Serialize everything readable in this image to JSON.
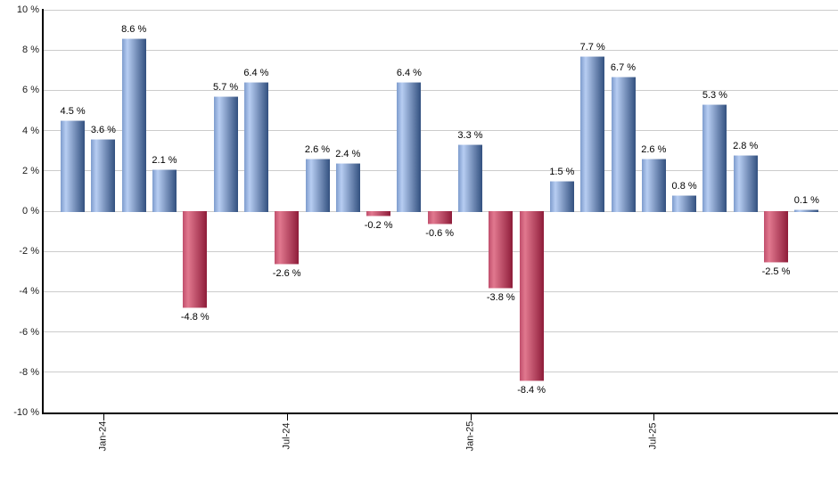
{
  "chart_data": {
    "type": "bar",
    "title": "",
    "xlabel": "",
    "ylabel": "",
    "unit": "%",
    "ylim": [
      -10,
      10
    ],
    "grid": true,
    "legend": false,
    "values": [
      4.5,
      3.6,
      8.6,
      2.1,
      -4.8,
      5.7,
      6.4,
      -2.6,
      2.6,
      2.4,
      -0.2,
      6.4,
      -0.6,
      3.3,
      -3.8,
      -8.4,
      1.5,
      7.7,
      6.7,
      2.6,
      0.8,
      5.3,
      2.8,
      -2.5,
      0.1
    ],
    "bar_labels": [
      "4.5 %",
      "3.6 %",
      "8.6 %",
      "2.1 %",
      "-4.8 %",
      "5.7 %",
      "6.4 %",
      "-2.6 %",
      "2.6 %",
      "2.4 %",
      "-0.2 %",
      "6.4 %",
      "-0.6 %",
      "3.3 %",
      "-3.8 %",
      "-8.4 %",
      "1.5 %",
      "7.7 %",
      "6.7 %",
      "2.6 %",
      "0.8 %",
      "5.3 %",
      "2.8 %",
      "-2.5 %",
      "0.1 %"
    ],
    "x_tick_labels": [
      "Jan-24",
      "Jul-24",
      "Jan-25",
      "Jul-25"
    ],
    "x_tick_bar_index": [
      1,
      7,
      13,
      19
    ],
    "y_ticks": [
      10,
      8,
      6,
      4,
      2,
      0,
      -2,
      -4,
      -6,
      -8,
      -10
    ],
    "y_tick_labels": [
      "10 %",
      "8 %",
      "6 %",
      "4 %",
      "2 %",
      "0 %",
      "-2 %",
      "-4 %",
      "-6 %",
      "-8 %",
      "-10 %"
    ],
    "colors": {
      "positive_edge": "#7e9ccd",
      "positive_light": "#b7cdf2",
      "positive_dark": "#32507f",
      "negative_edge": "#c04f6c",
      "negative_light": "#e1788f",
      "negative_dark": "#8e1c39",
      "grid": "#cccccc",
      "axis": "#000000",
      "text": "#000000"
    }
  }
}
